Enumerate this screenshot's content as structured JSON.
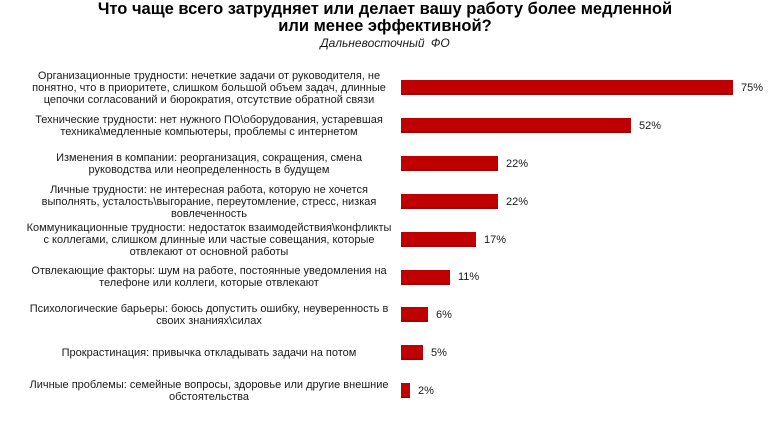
{
  "header": {
    "title_line1": "Что чаще всего затрудняет или делает вашу работу более медленной",
    "title_line2": "или менее эффективной?",
    "subtitle": "Дальневосточный ФО"
  },
  "style": {
    "bar_color": "#c00000",
    "bar_shadow_color": "#a50000",
    "background": "#ffffff"
  },
  "rows": [
    {
      "lines": [
        "Организационные трудности: нечеткие задачи от руководителя, не",
        "понятно, что в приоритете, слишком большой объем задач, длинные",
        "цепочки согласований и бюрократия, отсутствие обратной связи"
      ],
      "value": 75,
      "value_label": "75%"
    },
    {
      "lines": [
        "Технические трудности: нет нужного ПО\\оборудования, устаревшая",
        "техника\\медленные компьютеры, проблемы с интернетом"
      ],
      "value": 52,
      "value_label": "52%"
    },
    {
      "lines": [
        "Изменения в компании: реорганизация, сокращения, смена",
        "руководства или неопределенность в будущем"
      ],
      "value": 22,
      "value_label": "22%"
    },
    {
      "lines": [
        "Личные трудности: не интересная работа, которую не хочется",
        "выполнять, усталость\\выгорание, переутомление, стресс, низкая",
        "вовлеченность"
      ],
      "value": 22,
      "value_label": "22%"
    },
    {
      "lines": [
        "Коммуникационные трудности: недостаток взаимодействия\\конфликты",
        "с коллегами, слишком длинные или частые совещания, которые",
        "отвлекают от основной работы"
      ],
      "value": 17,
      "value_label": "17%"
    },
    {
      "lines": [
        "Отвлекающие факторы: шум на работе, постоянные уведомления на",
        "телефоне или  коллеги, которые отвлекают"
      ],
      "value": 11,
      "value_label": "11%"
    },
    {
      "lines": [
        "Психологические барьеры: боюсь допустить ошибку, неуверенность в",
        "своих знаниях\\силах"
      ],
      "value": 6,
      "value_label": "6%"
    },
    {
      "lines": [
        "Прокрастинация: привычка откладывать задачи на потом"
      ],
      "value": 5,
      "value_label": "5%"
    },
    {
      "lines": [
        "Личные проблемы: семейные вопросы, здоровье или другие внешние",
        "обстоятельства"
      ],
      "value": 2,
      "value_label": "2%"
    }
  ],
  "chart_data": {
    "type": "bar",
    "orientation": "horizontal",
    "title": "Что чаще всего затрудняет или делает вашу работу более медленной или менее эффективной?",
    "subtitle": "Дальневосточный ФО",
    "xlabel": "",
    "ylabel": "",
    "unit": "%",
    "grid": false,
    "legend": null,
    "axis_visible": false,
    "categories": [
      "Организационные трудности: нечеткие задачи от руководителя, не понятно, что в приоритете, слишком большой объем задач, длинные цепочки согласований и бюрократия, отсутствие обратной связи",
      "Технические трудности: нет нужного ПО\\оборудования, устаревшая техника\\медленные компьютеры, проблемы с интернетом",
      "Изменения в компании: реорганизация, сокращения, смена руководства или неопределенность в будущем",
      "Личные трудности: не интересная работа, которую не хочется выполнять, усталость\\выгорание, переутомление, стресс, низкая вовлеченность",
      "Коммуникационные трудности: недостаток взаимодействия\\конфликты с коллегами, слишком длинные или частые совещания, которые отвлекают от основной работы",
      "Отвлекающие факторы: шум на работе, постоянные уведомления на телефоне или коллеги, которые отвлекают",
      "Психологические барьеры: боюсь допустить ошибку, неуверенность в своих знаниях\\силах",
      "Прокрастинация: привычка откладывать задачи на потом",
      "Личные проблемы: семейные вопросы, здоровье или другие внешние обстоятельства"
    ],
    "values": [
      75,
      52,
      22,
      22,
      17,
      11,
      6,
      5,
      2
    ],
    "data_labels": [
      "75%",
      "52%",
      "22%",
      "22%",
      "17%",
      "11%",
      "6%",
      "5%",
      "2%"
    ],
    "xlim": [
      0,
      75
    ]
  }
}
